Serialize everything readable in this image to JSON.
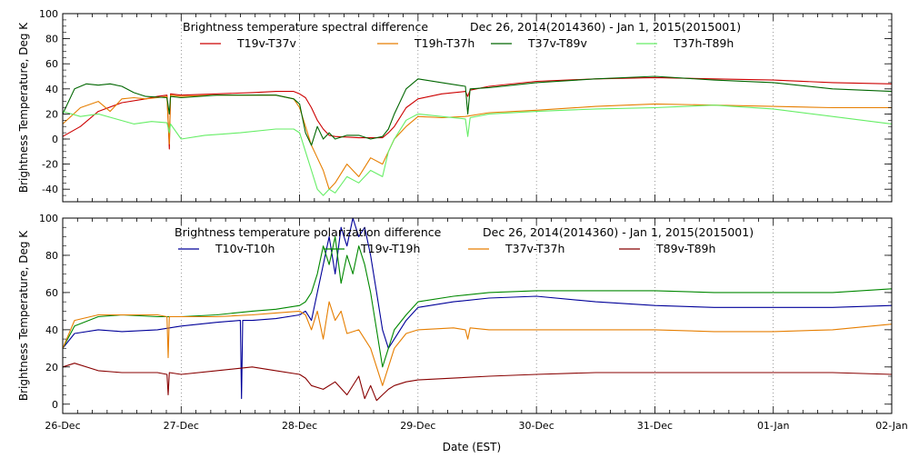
{
  "xlabel": "Date (EST)",
  "x_ticks": [
    "26-Dec",
    "27-Dec",
    "28-Dec",
    "29-Dec",
    "30-Dec",
    "31-Dec",
    "01-Jan",
    "02-Jan"
  ],
  "chart_data": [
    {
      "type": "line",
      "title": "Brightness temperature spectral difference",
      "date_range": "Dec 26, 2014(2014360) - Jan  1, 2015(2015001)",
      "ylabel": "Brightness Temperature, Deg K",
      "xlim": [
        0,
        7
      ],
      "ylim": [
        -50,
        100
      ],
      "yticks": [
        -40,
        -20,
        0,
        20,
        40,
        60,
        80,
        100
      ],
      "grid": true,
      "legend_position": "top",
      "series": [
        {
          "name": "T19v-T37v",
          "color": "#cc0000",
          "x": [
            0,
            0.15,
            0.3,
            0.5,
            0.7,
            0.8,
            0.88,
            0.9,
            0.91,
            1.0,
            1.3,
            1.6,
            1.8,
            1.95,
            2.0,
            2.05,
            2.1,
            2.15,
            2.2,
            2.25,
            2.3,
            2.5,
            2.7,
            2.75,
            2.8,
            2.9,
            3.0,
            3.2,
            3.4,
            3.42,
            3.44,
            3.6,
            4.0,
            4.5,
            5.0,
            5.5,
            6.0,
            6.5,
            7.0
          ],
          "y": [
            2,
            10,
            22,
            29,
            32,
            34,
            35,
            -8,
            36,
            35,
            36,
            37,
            38,
            38,
            36,
            33,
            25,
            15,
            8,
            3,
            2,
            1,
            1,
            5,
            10,
            25,
            32,
            36,
            38,
            34,
            39,
            42,
            46,
            48,
            49,
            48,
            47,
            45,
            44
          ]
        },
        {
          "name": "T19h-T37h",
          "color": "#e67e00",
          "x": [
            0,
            0.15,
            0.3,
            0.4,
            0.5,
            0.6,
            0.7,
            0.8,
            0.88,
            0.9,
            0.91,
            1.0,
            1.3,
            1.6,
            1.8,
            1.95,
            2.0,
            2.05,
            2.1,
            2.15,
            2.2,
            2.25,
            2.3,
            2.4,
            2.5,
            2.6,
            2.7,
            2.75,
            2.8,
            2.9,
            3.0,
            3.2,
            3.4,
            3.6,
            4.0,
            4.5,
            5.0,
            5.5,
            6.0,
            6.5,
            7.0
          ],
          "y": [
            12,
            25,
            30,
            22,
            32,
            33,
            32,
            33,
            34,
            -4,
            35,
            34,
            35,
            35,
            35,
            32,
            25,
            10,
            -5,
            -15,
            -25,
            -40,
            -35,
            -20,
            -30,
            -15,
            -20,
            -10,
            0,
            10,
            18,
            17,
            18,
            21,
            23,
            26,
            28,
            27,
            26,
            25,
            25
          ]
        },
        {
          "name": "T37v-T89v",
          "color": "#006600",
          "x": [
            0,
            0.1,
            0.2,
            0.3,
            0.4,
            0.5,
            0.6,
            0.7,
            0.88,
            0.9,
            0.91,
            1.0,
            1.3,
            1.6,
            1.8,
            1.95,
            2.0,
            2.05,
            2.1,
            2.15,
            2.2,
            2.25,
            2.3,
            2.4,
            2.5,
            2.6,
            2.7,
            2.75,
            2.8,
            2.9,
            3.0,
            3.2,
            3.4,
            3.42,
            3.44,
            3.6,
            4.0,
            4.5,
            5.0,
            5.5,
            6.0,
            6.5,
            7.0
          ],
          "y": [
            20,
            40,
            44,
            43,
            44,
            42,
            37,
            34,
            33,
            20,
            34,
            33,
            35,
            35,
            35,
            32,
            28,
            5,
            -5,
            10,
            0,
            5,
            0,
            3,
            3,
            0,
            2,
            8,
            20,
            40,
            48,
            45,
            42,
            20,
            40,
            41,
            45,
            48,
            50,
            47,
            45,
            40,
            38
          ]
        },
        {
          "name": "T37h-T89h",
          "color": "#66ee66",
          "x": [
            0,
            0.15,
            0.3,
            0.45,
            0.6,
            0.75,
            0.88,
            0.9,
            0.91,
            1.0,
            1.2,
            1.5,
            1.8,
            1.95,
            2.0,
            2.05,
            2.1,
            2.15,
            2.2,
            2.25,
            2.3,
            2.4,
            2.5,
            2.6,
            2.7,
            2.75,
            2.8,
            2.9,
            3.0,
            3.2,
            3.4,
            3.42,
            3.44,
            3.6,
            4.0,
            4.5,
            5.0,
            5.5,
            6.0,
            6.5,
            7.0
          ],
          "y": [
            22,
            18,
            20,
            16,
            12,
            14,
            13,
            5,
            12,
            0,
            3,
            5,
            8,
            8,
            5,
            -10,
            -25,
            -40,
            -45,
            -40,
            -43,
            -30,
            -35,
            -25,
            -30,
            -10,
            0,
            15,
            20,
            18,
            16,
            2,
            17,
            20,
            22,
            24,
            25,
            27,
            24,
            18,
            12
          ]
        }
      ]
    },
    {
      "type": "line",
      "title": "Brightness temperature polarization difference",
      "date_range": "Dec 26, 2014(2014360) - Jan  1, 2015(2015001)",
      "ylabel": "Brightness Temperature, Deg K",
      "xlim": [
        0,
        7
      ],
      "ylim": [
        -5,
        100
      ],
      "yticks": [
        0,
        20,
        40,
        60,
        80,
        100
      ],
      "grid": true,
      "legend_position": "top",
      "series": [
        {
          "name": "T10v-T10h",
          "color": "#000099",
          "x": [
            0,
            0.1,
            0.3,
            0.5,
            0.8,
            1.0,
            1.3,
            1.5,
            1.51,
            1.52,
            1.6,
            1.8,
            2.0,
            2.05,
            2.1,
            2.15,
            2.2,
            2.25,
            2.3,
            2.35,
            2.4,
            2.45,
            2.5,
            2.55,
            2.6,
            2.65,
            2.7,
            2.75,
            2.8,
            2.9,
            3.0,
            3.3,
            3.6,
            4.0,
            4.5,
            5.0,
            5.5,
            6.0,
            6.5,
            7.0
          ],
          "y": [
            30,
            38,
            40,
            39,
            40,
            42,
            44,
            45,
            3,
            45,
            45,
            46,
            48,
            50,
            45,
            60,
            75,
            90,
            70,
            95,
            85,
            100,
            90,
            95,
            80,
            60,
            40,
            30,
            35,
            45,
            52,
            55,
            57,
            58,
            55,
            53,
            52,
            52,
            52,
            53
          ]
        },
        {
          "name": "T19v-T19h",
          "color": "#008800",
          "x": [
            0,
            0.1,
            0.3,
            0.5,
            0.8,
            0.88,
            0.9,
            1.0,
            1.3,
            1.6,
            1.8,
            2.0,
            2.05,
            2.1,
            2.15,
            2.2,
            2.25,
            2.3,
            2.35,
            2.4,
            2.45,
            2.5,
            2.55,
            2.6,
            2.65,
            2.7,
            2.75,
            2.8,
            2.9,
            3.0,
            3.3,
            3.6,
            4.0,
            4.5,
            5.0,
            5.5,
            6.0,
            6.5,
            7.0
          ],
          "y": [
            30,
            42,
            47,
            48,
            47,
            47,
            47,
            47,
            48,
            50,
            51,
            53,
            55,
            60,
            70,
            85,
            75,
            90,
            65,
            80,
            70,
            85,
            75,
            60,
            40,
            20,
            30,
            40,
            48,
            55,
            58,
            60,
            61,
            61,
            61,
            60,
            60,
            60,
            62
          ]
        },
        {
          "name": "T37v-T37h",
          "color": "#e67e00",
          "x": [
            0,
            0.1,
            0.3,
            0.5,
            0.8,
            0.88,
            0.89,
            0.9,
            1.0,
            1.3,
            1.6,
            1.8,
            2.0,
            2.05,
            2.1,
            2.15,
            2.2,
            2.25,
            2.3,
            2.35,
            2.4,
            2.5,
            2.6,
            2.65,
            2.7,
            2.75,
            2.8,
            2.9,
            3.0,
            3.3,
            3.4,
            3.42,
            3.44,
            3.6,
            4.0,
            4.5,
            5.0,
            5.5,
            6.0,
            6.5,
            7.0
          ],
          "y": [
            30,
            45,
            48,
            48,
            48,
            47,
            25,
            47,
            47,
            47,
            48,
            49,
            50,
            48,
            40,
            50,
            35,
            55,
            45,
            50,
            38,
            40,
            30,
            20,
            10,
            20,
            30,
            38,
            40,
            41,
            40,
            35,
            41,
            40,
            40,
            40,
            40,
            39,
            39,
            40,
            43
          ]
        },
        {
          "name": "T89v-T89h",
          "color": "#880000",
          "x": [
            0,
            0.1,
            0.3,
            0.5,
            0.8,
            0.88,
            0.89,
            0.9,
            1.0,
            1.3,
            1.6,
            1.8,
            2.0,
            2.05,
            2.1,
            2.2,
            2.3,
            2.4,
            2.5,
            2.55,
            2.6,
            2.65,
            2.7,
            2.75,
            2.8,
            2.9,
            3.0,
            3.3,
            3.6,
            4.0,
            4.5,
            5.0,
            5.5,
            6.0,
            6.5,
            7.0
          ],
          "y": [
            20,
            22,
            18,
            17,
            17,
            16,
            5,
            17,
            16,
            18,
            20,
            18,
            16,
            14,
            10,
            8,
            12,
            5,
            15,
            3,
            10,
            2,
            5,
            8,
            10,
            12,
            13,
            14,
            15,
            16,
            17,
            17,
            17,
            17,
            17,
            16
          ]
        }
      ]
    }
  ]
}
